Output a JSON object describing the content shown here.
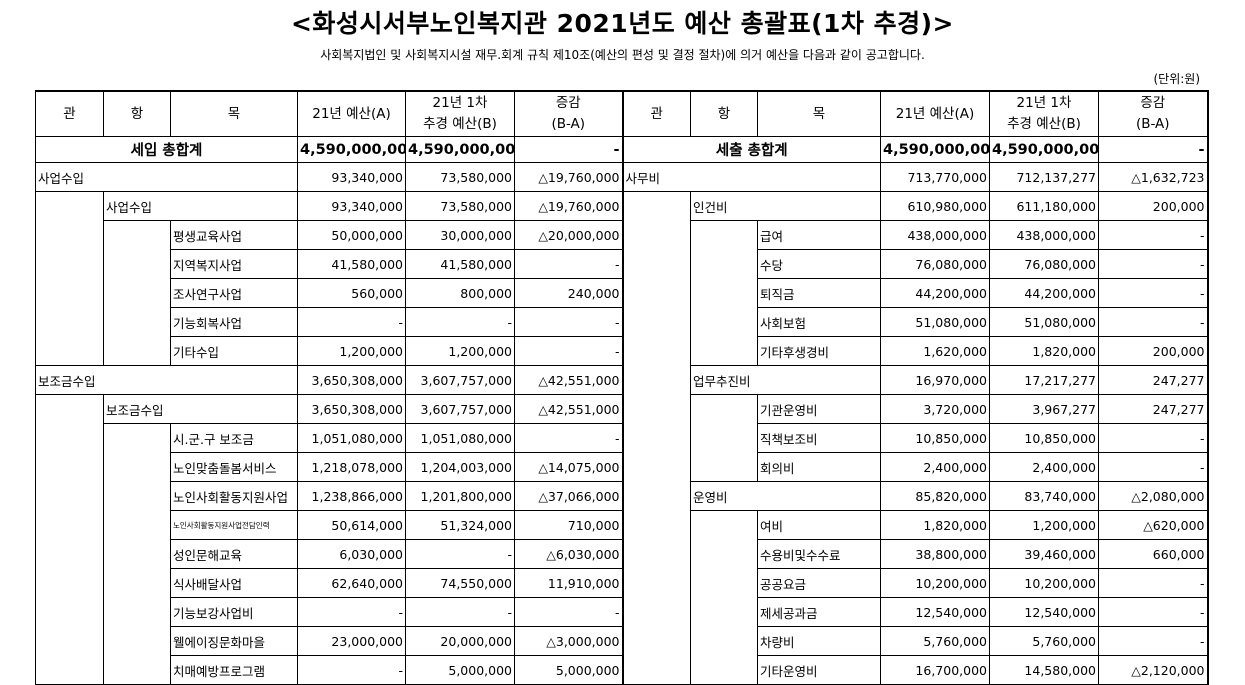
{
  "title": "<화성시서부노인복지관 2021년도 예산 총괄표(1차 추경)>",
  "subtitle": "사회복지법인 및 사회복지시설 재무.회계 규칙 제10조(예산의 편성 및 결정 절차)에 의거 예산을 다음과 같이 공고합니다.",
  "unit": "(단위:원)",
  "headers": {
    "gwan": "관",
    "hang": "항",
    "mok": "목",
    "budget_a": "21년 예산(A)",
    "budget_b_line1": "21년 1차",
    "budget_b_line2": "추경 예산(B)",
    "diff_line1": "증감",
    "diff_line2": "(B-A)"
  },
  "revenue": {
    "total": {
      "label": "세입 총합계",
      "a": "4,590,000,000",
      "b": "4,590,000,000",
      "d": "-"
    },
    "rows": [
      {
        "gwan": "사업수입",
        "a": "93,340,000",
        "b": "73,580,000",
        "d": "△19,760,000"
      },
      {
        "hang": "사업수입",
        "a": "93,340,000",
        "b": "73,580,000",
        "d": "△19,760,000"
      },
      {
        "mok": "평생교육사업",
        "a": "50,000,000",
        "b": "30,000,000",
        "d": "△20,000,000"
      },
      {
        "mok": "지역복지사업",
        "a": "41,580,000",
        "b": "41,580,000",
        "d": "-"
      },
      {
        "mok": "조사연구사업",
        "a": "560,000",
        "b": "800,000",
        "d": "240,000"
      },
      {
        "mok": "기능회복사업",
        "a": "-",
        "b": "-",
        "d": "-"
      },
      {
        "mok": "기타수입",
        "a": "1,200,000",
        "b": "1,200,000",
        "d": "-"
      },
      {
        "gwan": "보조금수입",
        "a": "3,650,308,000",
        "b": "3,607,757,000",
        "d": "△42,551,000"
      },
      {
        "hang": "보조금수입",
        "a": "3,650,308,000",
        "b": "3,607,757,000",
        "d": "△42,551,000"
      },
      {
        "mok": "시.군.구 보조금",
        "a": "1,051,080,000",
        "b": "1,051,080,000",
        "d": "-"
      },
      {
        "mok": "노인맞춤돌봄서비스",
        "a": "1,218,078,000",
        "b": "1,204,003,000",
        "d": "△14,075,000"
      },
      {
        "mok": "노인사회활동지원사업",
        "a": "1,238,866,000",
        "b": "1,201,800,000",
        "d": "△37,066,000"
      },
      {
        "mok": "노인사회활동지원사업전담인력",
        "a": "50,614,000",
        "b": "51,324,000",
        "d": "710,000",
        "tiny": true
      },
      {
        "mok": "성인문해교육",
        "a": "6,030,000",
        "b": "-",
        "d": "△6,030,000"
      },
      {
        "mok": "식사배달사업",
        "a": "62,640,000",
        "b": "74,550,000",
        "d": "11,910,000"
      },
      {
        "mok": "기능보강사업비",
        "a": "-",
        "b": "-",
        "d": "-"
      },
      {
        "mok": "웰에이징문화마을",
        "a": "23,000,000",
        "b": "20,000,000",
        "d": "△3,000,000"
      },
      {
        "mok": "치매예방프로그램",
        "a": "-",
        "b": "5,000,000",
        "d": "5,000,000"
      }
    ]
  },
  "expense": {
    "total": {
      "label": "세출 총합계",
      "a": "4,590,000,000",
      "b": "4,590,000,000",
      "d": "-"
    },
    "rows": [
      {
        "gwan": "사무비",
        "a": "713,770,000",
        "b": "712,137,277",
        "d": "△1,632,723"
      },
      {
        "hang": "인건비",
        "a": "610,980,000",
        "b": "611,180,000",
        "d": "200,000"
      },
      {
        "mok": "급여",
        "a": "438,000,000",
        "b": "438,000,000",
        "d": "-"
      },
      {
        "mok": "수당",
        "a": "76,080,000",
        "b": "76,080,000",
        "d": "-"
      },
      {
        "mok": "퇴직금",
        "a": "44,200,000",
        "b": "44,200,000",
        "d": "-"
      },
      {
        "mok": "사회보험",
        "a": "51,080,000",
        "b": "51,080,000",
        "d": "-"
      },
      {
        "mok": "기타후생경비",
        "a": "1,620,000",
        "b": "1,820,000",
        "d": "200,000"
      },
      {
        "hang": "업무추진비",
        "a": "16,970,000",
        "b": "17,217,277",
        "d": "247,277"
      },
      {
        "mok": "기관운영비",
        "a": "3,720,000",
        "b": "3,967,277",
        "d": "247,277"
      },
      {
        "mok": "직책보조비",
        "a": "10,850,000",
        "b": "10,850,000",
        "d": "-"
      },
      {
        "mok": "회의비",
        "a": "2,400,000",
        "b": "2,400,000",
        "d": "-"
      },
      {
        "hang": "운영비",
        "a": "85,820,000",
        "b": "83,740,000",
        "d": "△2,080,000"
      },
      {
        "mok": "여비",
        "a": "1,820,000",
        "b": "1,200,000",
        "d": "△620,000"
      },
      {
        "mok": "수용비및수수료",
        "a": "38,800,000",
        "b": "39,460,000",
        "d": "660,000"
      },
      {
        "mok": "공공요금",
        "a": "10,200,000",
        "b": "10,200,000",
        "d": "-"
      },
      {
        "mok": "제세공과금",
        "a": "12,540,000",
        "b": "12,540,000",
        "d": "-"
      },
      {
        "mok": "차량비",
        "a": "5,760,000",
        "b": "5,760,000",
        "d": "-"
      },
      {
        "mok": "기타운영비",
        "a": "16,700,000",
        "b": "14,580,000",
        "d": "△2,120,000"
      }
    ]
  }
}
